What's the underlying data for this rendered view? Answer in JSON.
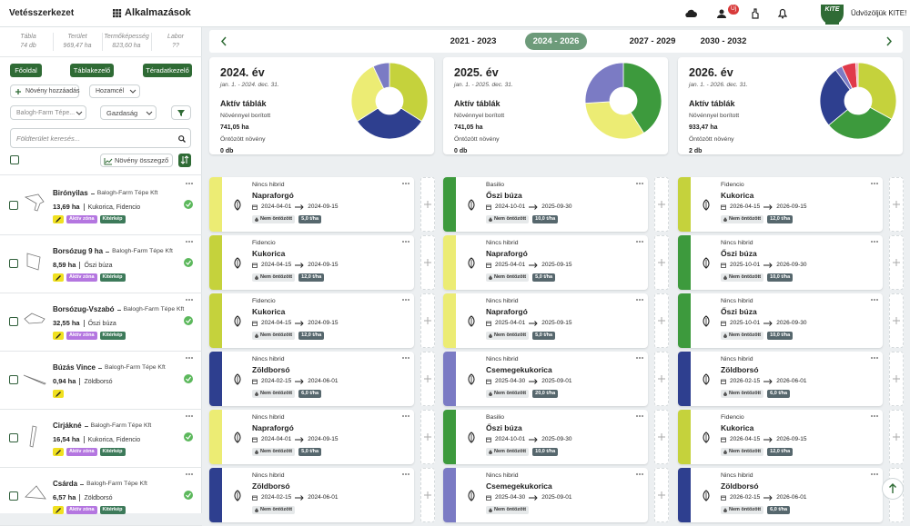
{
  "header": {
    "title": "Vetésszerkezet",
    "apps": "Alkalmazások",
    "badge": "Új",
    "logo": "KITE",
    "welcome": "Üdvözöljük KITE!"
  },
  "sidebar": {
    "stats": [
      {
        "label": "Tábla",
        "value": "74 db"
      },
      {
        "label": "Terület",
        "value": "969,47 ha"
      },
      {
        "label": "Termőképesség",
        "value": "823,60 ha"
      },
      {
        "label": "Labor",
        "value": "??"
      }
    ],
    "nav": [
      "Főoldal",
      "Táblakezelő",
      "Téradatkezelő"
    ],
    "add_plant": "Növény hozzáadás",
    "yield_target": "Hozamcél",
    "farm_filter": "Balogh-Farm Tépe...",
    "holding": "Gazdaság",
    "search_placeholder": "Földterület keresés...",
    "summary_button": "Növény összegző",
    "fields": [
      {
        "name": "Birónyilas",
        "farm": "Balogh-Farm Tépe Kft",
        "area": "13,69 ha",
        "crops": "Kukorica, Fidencio",
        "tags": [
          "Aktív zóna",
          "Kitérkép"
        ]
      },
      {
        "name": "Borsózug 9 ha",
        "farm": "Balogh-Farm Tépe Kft",
        "area": "8,59 ha",
        "crops": "Őszi búza",
        "tags": [
          "Aktív zóna",
          "Kitérkép"
        ]
      },
      {
        "name": "Borsózug-Vszabó",
        "farm": "Balogh-Farm Tépe Kft",
        "area": "32,55 ha",
        "crops": "Őszi búza",
        "tags": [
          "Aktív zóna",
          "Kitérkép"
        ]
      },
      {
        "name": "Búzás Vince",
        "farm": "Balogh-Farm Tépe Kft",
        "area": "0,94 ha",
        "crops": "Zöldborsó",
        "tags": []
      },
      {
        "name": "Cirjákné",
        "farm": "Balogh-Farm Tépe Kft",
        "area": "16,54 ha",
        "crops": "Kukorica, Fidencio",
        "tags": [
          "Aktív zóna",
          "Kitérkép"
        ]
      },
      {
        "name": "Csárda",
        "farm": "Balogh-Farm Tépe Kft",
        "area": "6,57 ha",
        "crops": "Zöldborsó",
        "tags": [
          "Aktív zóna",
          "Kitérkép"
        ]
      }
    ]
  },
  "timeline": {
    "ranges": [
      "2021 - 2023",
      "2024 - 2026",
      "2027 - 2029",
      "2030 - 2032"
    ],
    "active": 1
  },
  "years": [
    {
      "title": "2024. év",
      "period": "jan. 1. - 2024. dec. 31.",
      "active_label": "Aktív táblák",
      "covered_label": "Növénnyel borított",
      "covered": "741,05 ha",
      "irrigated_label": "Öntözött növény",
      "irrigated": "0 db",
      "chart": {
        "type": "pie",
        "segments": [
          {
            "color": "#c5d23c",
            "value": 34
          },
          {
            "color": "#2e3f8f",
            "value": 32
          },
          {
            "color": "#ecec74",
            "value": 27
          },
          {
            "color": "#7b7bc4",
            "value": 7
          }
        ]
      },
      "cards": [
        {
          "color": "#ecec74",
          "hybrid": "Nincs hibrid",
          "crop": "Napraforgó",
          "start": "2024-04-01",
          "end": "2024-09-15",
          "status": "Nem öntözött",
          "rate": "5,0 t/ha"
        },
        {
          "color": "#c5d23c",
          "hybrid": "Fidencio",
          "crop": "Kukorica",
          "start": "2024-04-15",
          "end": "2024-09-15",
          "status": "Nem öntözött",
          "rate": "12,0 t/ha"
        },
        {
          "color": "#c5d23c",
          "hybrid": "Fidencio",
          "crop": "Kukorica",
          "start": "2024-04-15",
          "end": "2024-09-15",
          "status": "Nem öntözött",
          "rate": "12,0 t/ha"
        },
        {
          "color": "#2e3f8f",
          "hybrid": "Nincs hibrid",
          "crop": "Zöldborsó",
          "start": "2024-02-15",
          "end": "2024-06-01",
          "status": "Nem öntözött",
          "rate": "6,0 t/ha"
        },
        {
          "color": "#ecec74",
          "hybrid": "Nincs hibrid",
          "crop": "Napraforgó",
          "start": "2024-04-01",
          "end": "2024-09-15",
          "status": "Nem öntözött",
          "rate": "5,0 t/ha"
        },
        {
          "color": "#2e3f8f",
          "hybrid": "Nincs hibrid",
          "crop": "Zöldborsó",
          "start": "2024-02-15",
          "end": "2024-06-01",
          "status": "Nem öntözött"
        }
      ]
    },
    {
      "title": "2025. év",
      "period": "jan. 1. - 2025. dec. 31.",
      "active_label": "Aktív táblák",
      "covered_label": "Növénnyel borított",
      "covered": "741,05 ha",
      "irrigated_label": "Öntözött növény",
      "irrigated": "0 db",
      "chart": {
        "type": "pie",
        "segments": [
          {
            "color": "#3d9a3d",
            "value": 41
          },
          {
            "color": "#ecec74",
            "value": 33
          },
          {
            "color": "#7b7bc4",
            "value": 26
          }
        ]
      },
      "cards": [
        {
          "color": "#3d9a3d",
          "hybrid": "Basilio",
          "crop": "Őszi búza",
          "start": "2024-10-01",
          "end": "2025-09-30",
          "status": "Nem öntözött",
          "rate": "10,0 t/ha"
        },
        {
          "color": "#ecec74",
          "hybrid": "Nincs hibrid",
          "crop": "Napraforgó",
          "start": "2025-04-01",
          "end": "2025-09-15",
          "status": "Nem öntözött",
          "rate": "5,0 t/ha"
        },
        {
          "color": "#ecec74",
          "hybrid": "Nincs hibrid",
          "crop": "Napraforgó",
          "start": "2025-04-01",
          "end": "2025-09-15",
          "status": "Nem öntözött",
          "rate": "5,0 t/ha"
        },
        {
          "color": "#7b7bc4",
          "hybrid": "Nincs hibrid",
          "crop": "Csemegekukorica",
          "start": "2025-04-30",
          "end": "2025-09-01",
          "status": "Nem öntözött",
          "rate": "20,0 t/ha"
        },
        {
          "color": "#3d9a3d",
          "hybrid": "Basilio",
          "crop": "Őszi búza",
          "start": "2024-10-01",
          "end": "2025-09-30",
          "status": "Nem öntözött",
          "rate": "10,0 t/ha"
        },
        {
          "color": "#7b7bc4",
          "hybrid": "Nincs hibrid",
          "crop": "Csemegekukorica",
          "start": "2025-04-30",
          "end": "2025-09-01",
          "status": "Nem öntözött"
        }
      ]
    },
    {
      "title": "2026. év",
      "period": "jan. 1. - 2026. dec. 31.",
      "active_label": "Aktív táblák",
      "covered_label": "Növénnyel borított",
      "covered": "933,47 ha",
      "irrigated_label": "Öntözött növény",
      "irrigated": "2 db",
      "chart": {
        "type": "pie",
        "segments": [
          {
            "color": "#c5d23c",
            "value": 33
          },
          {
            "color": "#3d9a3d",
            "value": 31
          },
          {
            "color": "#2e3f8f",
            "value": 26
          },
          {
            "color": "#7b7bc4",
            "value": 3
          },
          {
            "color": "#e03a4a",
            "value": 6
          },
          {
            "color": "#f0a0b0",
            "value": 1
          }
        ]
      },
      "cards": [
        {
          "color": "#c5d23c",
          "hybrid": "Fidencio",
          "crop": "Kukorica",
          "start": "2026-04-15",
          "end": "2026-09-15",
          "status": "Nem öntözött",
          "rate": "12,0 t/ha"
        },
        {
          "color": "#3d9a3d",
          "hybrid": "Nincs hibrid",
          "crop": "Őszi búza",
          "start": "2025-10-01",
          "end": "2026-09-30",
          "status": "Nem öntözött",
          "rate": "10,0 t/ha"
        },
        {
          "color": "#3d9a3d",
          "hybrid": "Nincs hibrid",
          "crop": "Őszi búza",
          "start": "2025-10-01",
          "end": "2026-09-30",
          "status": "Nem öntözött",
          "rate": "10,0 t/ha"
        },
        {
          "color": "#2e3f8f",
          "hybrid": "Nincs hibrid",
          "crop": "Zöldborsó",
          "start": "2026-02-15",
          "end": "2026-06-01",
          "status": "Nem öntözött",
          "rate": "6,0 t/ha"
        },
        {
          "color": "#c5d23c",
          "hybrid": "Fidencio",
          "crop": "Kukorica",
          "start": "2026-04-15",
          "end": "2026-09-15",
          "status": "Nem öntözött",
          "rate": "12,0 t/ha"
        },
        {
          "color": "#2e3f8f",
          "hybrid": "Nincs hibrid",
          "crop": "Zöldborsó",
          "start": "2026-02-15",
          "end": "2026-06-01",
          "status": "Nem öntözött",
          "rate": "6,0 t/ha"
        }
      ]
    }
  ]
}
